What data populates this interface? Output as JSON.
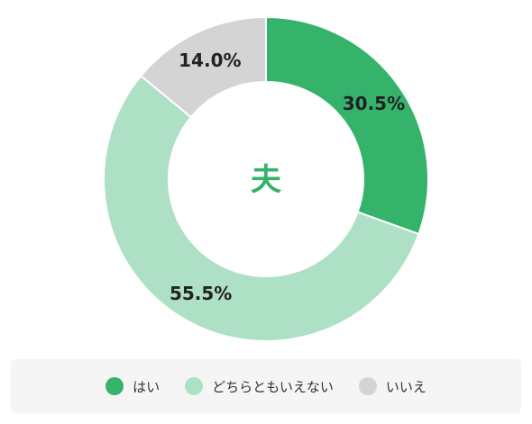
{
  "chart_data": {
    "type": "pie",
    "title": "",
    "center_label": "夫",
    "categories": [
      "はい",
      "どちらともいえない",
      "いいえ"
    ],
    "values": [
      30.5,
      55.5,
      14.0
    ],
    "value_labels": [
      "30.5%",
      "55.5%",
      "14.0%"
    ],
    "colors": [
      "#36b36b",
      "#aee0c6",
      "#d4d4d4"
    ],
    "legend_position": "bottom"
  },
  "colors": {
    "center_text": "#36b36b"
  }
}
